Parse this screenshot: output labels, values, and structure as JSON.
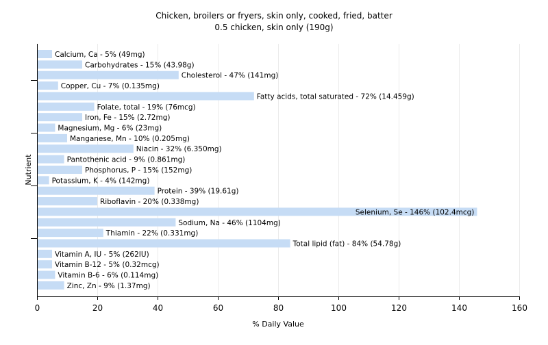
{
  "chart_data": {
    "type": "bar",
    "orientation": "horizontal",
    "title": "Chicken, broilers or fryers, skin only, cooked, fried, batter",
    "subtitle": "0.5 chicken, skin only (190g)",
    "xlabel": "% Daily Value",
    "ylabel": "Nutrient",
    "xlim": [
      0,
      160
    ],
    "x_ticks": [
      "0",
      "20",
      "40",
      "60",
      "80",
      "100",
      "120",
      "140",
      "160"
    ],
    "grid": "vertical",
    "bar_color": "#c6dcf5",
    "categories": [
      "Calcium, Ca",
      "Carbohydrates",
      "Cholesterol",
      "Copper, Cu",
      "Fatty acids, total saturated",
      "Folate, total",
      "Iron, Fe",
      "Magnesium, Mg",
      "Manganese, Mn",
      "Niacin",
      "Pantothenic acid",
      "Phosphorus, P",
      "Potassium, K",
      "Protein",
      "Riboflavin",
      "Selenium, Se",
      "Sodium, Na",
      "Thiamin",
      "Total lipid (fat)",
      "Vitamin A, IU",
      "Vitamin B-12",
      "Vitamin B-6",
      "Zinc, Zn"
    ],
    "values": [
      5,
      15,
      47,
      7,
      72,
      19,
      15,
      6,
      10,
      32,
      9,
      15,
      4,
      39,
      20,
      146,
      46,
      22,
      84,
      5,
      5,
      6,
      9
    ],
    "labels": [
      "Calcium, Ca - 5% (49mg)",
      "Carbohydrates - 15% (43.98g)",
      "Cholesterol - 47% (141mg)",
      "Copper, Cu - 7% (0.135mg)",
      "Fatty acids, total saturated - 72% (14.459g)",
      "Folate, total - 19% (76mcg)",
      "Iron, Fe - 15% (2.72mg)",
      "Magnesium, Mg - 6% (23mg)",
      "Manganese, Mn - 10% (0.205mg)",
      "Niacin - 32% (6.350mg)",
      "Pantothenic acid - 9% (0.861mg)",
      "Phosphorus, P - 15% (152mg)",
      "Potassium, K - 4% (142mg)",
      "Protein - 39% (19.61g)",
      "Riboflavin - 20% (0.338mg)",
      "Selenium, Se - 146% (102.4mcg)",
      "Sodium, Na - 46% (1104mg)",
      "Thiamin - 22% (0.331mg)",
      "Total lipid (fat) - 84% (54.78g)",
      "Vitamin A, IU - 5% (262IU)",
      "Vitamin B-12 - 5% (0.32mcg)",
      "Vitamin B-6 - 6% (0.114mg)",
      "Zinc, Zn - 9% (1.37mg)"
    ]
  }
}
